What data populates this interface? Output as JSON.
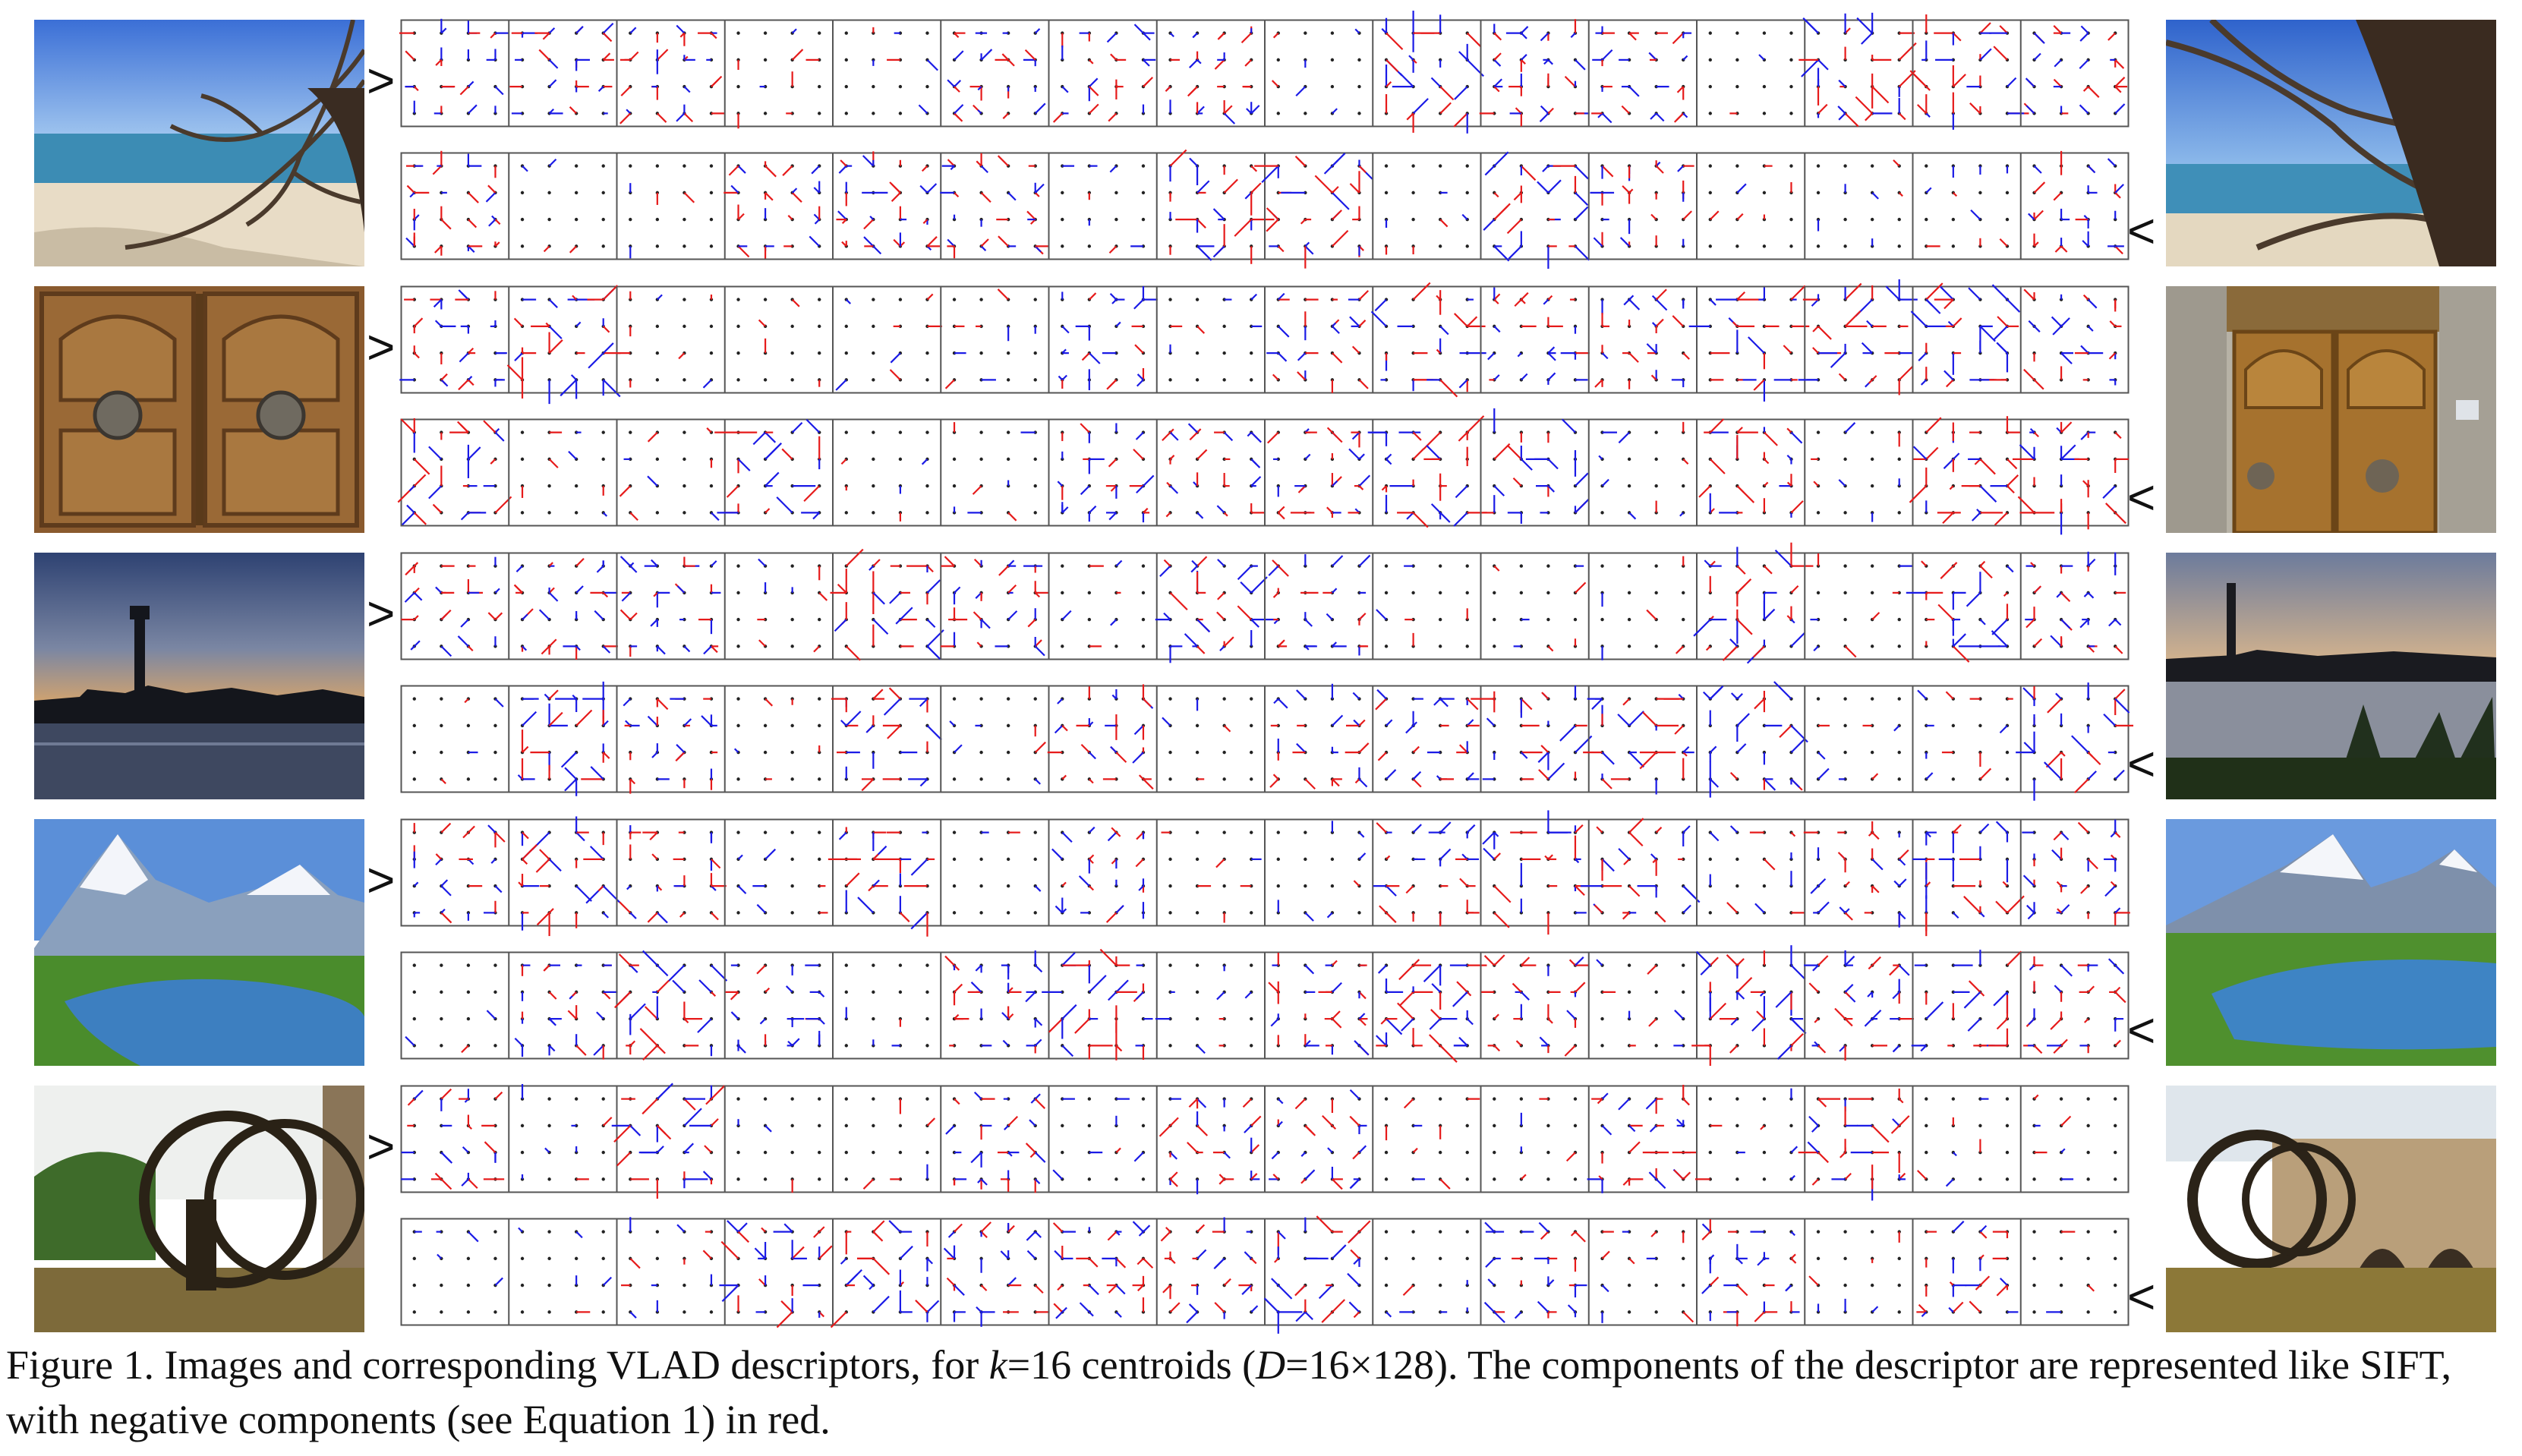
{
  "caption": {
    "label": "Figure 1.",
    "text_a": " Images and corresponding VLAD descriptors, for ",
    "k_symbol": "k",
    "text_b": "=16 centroids (",
    "d_symbol": "D",
    "text_c": "=16×128). The components of the descriptor are represented like SIFT, with negative components (see Equation 1) in red."
  },
  "pointers": {
    "left_row": ">",
    "right_row": "<"
  },
  "descriptor_legend_colors": {
    "positive": "#1a1ae6",
    "negative": "#e61a1a"
  },
  "pairs": [
    {
      "left_photo": "beach-driftwood",
      "right_photo": "beach-driftwood-closeup"
    },
    {
      "left_photo": "wooden-door-lion-knockers",
      "right_photo": "wooden-door-stone-frame"
    },
    {
      "left_photo": "sunset-tower-river",
      "right_photo": "sunset-tower-river-palms"
    },
    {
      "left_photo": "mountain-lake-snow-peaks",
      "right_photo": "mountain-lake-snow-peaks-wide"
    },
    {
      "left_photo": "water-wheel-norias",
      "right_photo": "water-wheel-stone-aqueduct"
    }
  ]
}
